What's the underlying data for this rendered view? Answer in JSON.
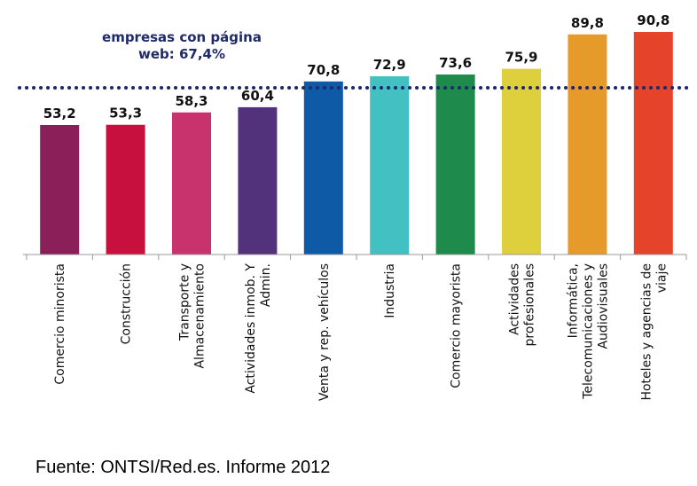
{
  "chart_data": {
    "type": "bar",
    "categories": [
      [
        "Comercio minorista"
      ],
      [
        "Construcción"
      ],
      [
        "Transporte y",
        "Almacenamiento"
      ],
      [
        "Actividades inmob. Y",
        "Admin."
      ],
      [
        "Venta y rep. vehículos"
      ],
      [
        "Industria"
      ],
      [
        "Comercio mayorista"
      ],
      [
        "Actividades",
        "profesionales"
      ],
      [
        "Informática,",
        "Telecomunicaciones y",
        "Audiovisuales"
      ],
      [
        "Hoteles y agencias de",
        "viaje"
      ]
    ],
    "values": [
      53.2,
      53.3,
      58.3,
      60.4,
      70.8,
      72.9,
      73.6,
      75.9,
      89.8,
      90.8
    ],
    "value_labels": [
      "53,2",
      "53,3",
      "58,3",
      "60,4",
      "70,8",
      "72,9",
      "73,6",
      "75,9",
      "89,8",
      "90,8"
    ],
    "colors": [
      "#8B1F5A",
      "#C8103E",
      "#C8336E",
      "#52327A",
      "#0E5AA7",
      "#43C0C2",
      "#1E8A4C",
      "#DDD03C",
      "#E59A2A",
      "#E6442A"
    ],
    "reference_line": {
      "value": 67.4,
      "label_lines": [
        "empresas con página",
        "web: 67,4%"
      ],
      "color": "#1F2A6B"
    },
    "ylim": [
      25,
      95
    ],
    "grid": false
  },
  "source": "Fuente: ONTSI/Red.es. Informe 2012"
}
